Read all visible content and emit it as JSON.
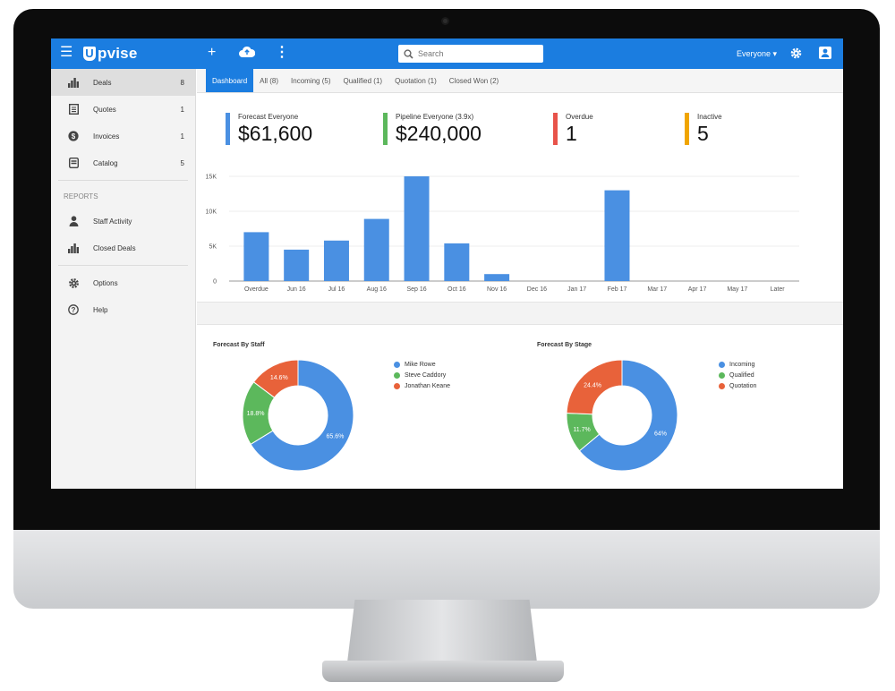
{
  "app": {
    "brand_mark": "U",
    "brand_word": "pvise",
    "search_placeholder": "Search",
    "user_filter": "Everyone"
  },
  "sidebar": {
    "items": [
      {
        "label": "Deals",
        "count": "8",
        "icon": "bar-chart-icon"
      },
      {
        "label": "Quotes",
        "count": "1",
        "icon": "document-icon"
      },
      {
        "label": "Invoices",
        "count": "1",
        "icon": "dollar-coin-icon"
      },
      {
        "label": "Catalog",
        "count": "5",
        "icon": "catalog-icon"
      }
    ],
    "reports_heading": "REPORTS",
    "reports": [
      {
        "label": "Staff Activity",
        "icon": "person-icon"
      },
      {
        "label": "Closed Deals",
        "icon": "bar-chart-icon"
      }
    ],
    "footer": [
      {
        "label": "Options",
        "icon": "gear-icon"
      },
      {
        "label": "Help",
        "icon": "help-icon"
      }
    ]
  },
  "tabs": [
    "Dashboard",
    "All (8)",
    "Incoming (5)",
    "Qualified (1)",
    "Quotation (1)",
    "Closed Won (2)"
  ],
  "kpis": [
    {
      "label": "Forecast Everyone",
      "value": "$61,600",
      "color": "#4a90e2"
    },
    {
      "label": "Pipeline Everyone (3.9x)",
      "value": "$240,000",
      "color": "#5cb85c"
    },
    {
      "label": "Overdue",
      "value": "1",
      "color": "#e8534a"
    },
    {
      "label": "Inactive",
      "value": "5",
      "color": "#f0a500"
    }
  ],
  "chart_data": [
    {
      "type": "bar",
      "categories": [
        "Overdue",
        "Jun 16",
        "Jul 16",
        "Aug 16",
        "Sep 16",
        "Oct 16",
        "Nov 16",
        "Dec 16",
        "Jan 17",
        "Feb 17",
        "Mar 17",
        "Apr 17",
        "May 17",
        "Later"
      ],
      "values": [
        7000,
        4500,
        5800,
        8900,
        15000,
        5400,
        1000,
        0,
        0,
        13000,
        0,
        0,
        0,
        0
      ],
      "ylim": [
        0,
        15000
      ],
      "yticks": [
        "0",
        "5K",
        "10K",
        "15K"
      ],
      "color": "#4a90e2",
      "grid": true
    },
    {
      "type": "pie",
      "title": "Forecast By Staff",
      "series": [
        {
          "name": "Mike Rowe",
          "value": 65.6,
          "label": "65.6%",
          "color": "#4a90e2"
        },
        {
          "name": "Steve Caddory",
          "value": 18.8,
          "label": "18.8%",
          "color": "#5cb85c"
        },
        {
          "name": "Jonathan Keane",
          "value": 14.6,
          "label": "14.6%",
          "color": "#e8623a"
        }
      ]
    },
    {
      "type": "pie",
      "title": "Forecast By Stage",
      "series": [
        {
          "name": "Incoming",
          "value": 64,
          "label": "64%",
          "color": "#4a90e2"
        },
        {
          "name": "Qualified",
          "value": 11.7,
          "label": "11.7%",
          "color": "#5cb85c"
        },
        {
          "name": "Quotation",
          "value": 24.4,
          "label": "24.4%",
          "color": "#e8623a"
        }
      ]
    }
  ]
}
